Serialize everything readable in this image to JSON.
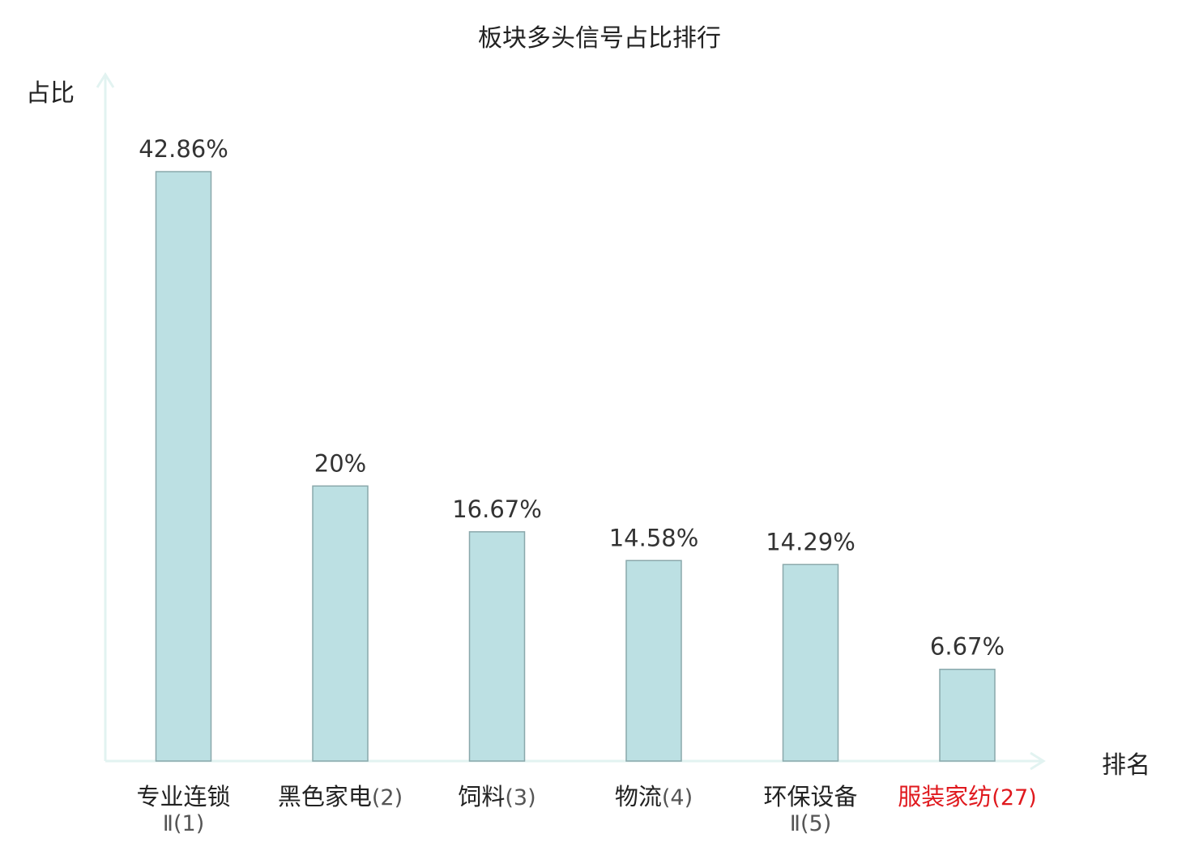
{
  "chart_data": {
    "type": "bar",
    "title": "板块多头信号占比排行",
    "ylabel": "占比",
    "xlabel": "排名",
    "ylim": [
      0,
      50
    ],
    "grid": false,
    "categories": [
      {
        "name": "专业连锁",
        "sub": "Ⅱ(1)",
        "highlight": false
      },
      {
        "name": "黑色家电",
        "sub": "(2)",
        "highlight": false
      },
      {
        "name": "饲料",
        "sub": "(3)",
        "highlight": false
      },
      {
        "name": "物流",
        "sub": "(4)",
        "highlight": false
      },
      {
        "name": "环保设备",
        "sub": "Ⅱ(5)",
        "highlight": false
      },
      {
        "name": "服装家纺",
        "sub": "(27)",
        "highlight": true
      }
    ],
    "values": [
      42.86,
      20,
      16.67,
      14.58,
      14.29,
      6.67
    ],
    "value_labels": [
      "42.86%",
      "20%",
      "16.67%",
      "14.58%",
      "14.29%",
      "6.67%"
    ]
  },
  "colors": {
    "bar_fill": "#bce0e3",
    "bar_stroke": "#8aa8ab",
    "axis": "#e2f3f1",
    "text": "#222222",
    "label_text": "#333333",
    "highlight": "#e0191e"
  }
}
